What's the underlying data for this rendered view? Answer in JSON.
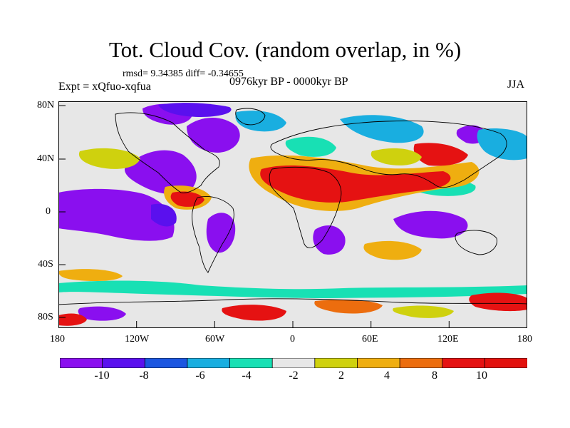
{
  "title": "Tot. Cloud Cov. (random overlap, in %)",
  "stats": "rmsd= 9.34385 diff= -0.34655",
  "experiment": "Expt = xQfuo-xqfua",
  "period": "0976kyr BP - 0000kyr BP",
  "season": "JJA",
  "axes": {
    "x_ticks": [
      "180",
      "120W",
      "60W",
      "0",
      "60E",
      "120E",
      "180"
    ],
    "y_ticks": [
      "80N",
      "40N",
      "0",
      "40S",
      "80S"
    ]
  },
  "colorbar": {
    "labels": [
      "-10",
      "-8",
      "-6",
      "-4",
      "-2",
      "2",
      "4",
      "8",
      "10"
    ],
    "colors": [
      "#8a0fef",
      "#5a10ee",
      "#1b56e0",
      "#19aee0",
      "#18e0b4",
      "#e7e7e7",
      "#cfd10e",
      "#efae10",
      "#ec6d0e",
      "#e51212",
      "#e2110e"
    ]
  },
  "colors": {
    "background": "#e7e7e7",
    "purple": "#8a0fef",
    "indigo": "#5a10ee",
    "blue": "#1b56e0",
    "cyan": "#19aee0",
    "teal": "#18e0b4",
    "yellow": "#cfd10e",
    "orange": "#efae10",
    "dark_orange": "#ec6d0e",
    "red": "#e51212"
  }
}
